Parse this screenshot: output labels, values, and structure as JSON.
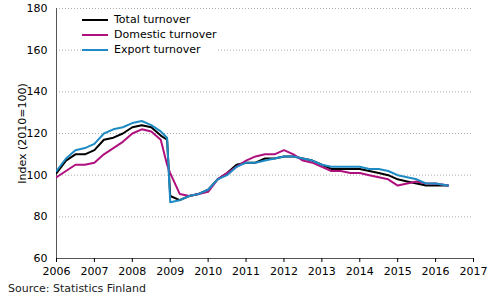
{
  "chart_data": {
    "type": "line",
    "y_label": "Index (2010=100)",
    "caption": "Source: Statistics Finland",
    "x": [
      2006.0,
      2006.25,
      2006.5,
      2006.75,
      2007.0,
      2007.25,
      2007.5,
      2007.75,
      2008.0,
      2008.25,
      2008.5,
      2008.75,
      2008.917,
      2009.0,
      2009.25,
      2009.5,
      2009.75,
      2010.0,
      2010.25,
      2010.5,
      2010.75,
      2011.0,
      2011.25,
      2011.5,
      2011.75,
      2012.0,
      2012.25,
      2012.5,
      2012.75,
      2013.0,
      2013.25,
      2013.5,
      2013.75,
      2014.0,
      2014.25,
      2014.5,
      2014.75,
      2015.0,
      2015.25,
      2015.5,
      2015.75,
      2016.0,
      2016.33
    ],
    "series": [
      {
        "name": "Total turnover",
        "color": "#000000",
        "values": [
          101,
          107,
          110,
          110,
          112,
          117,
          118,
          120,
          123,
          124,
          123,
          119,
          117,
          90,
          88,
          90,
          91,
          93,
          98,
          101,
          105,
          106,
          106,
          108,
          108,
          109,
          109,
          108,
          107,
          105,
          103,
          103,
          103,
          103,
          102,
          101,
          100,
          98,
          97,
          96,
          95,
          95,
          95
        ]
      },
      {
        "name": "Domestic turnover",
        "color": "#b0107e",
        "values": [
          99,
          102,
          105,
          105,
          106,
          110,
          113,
          116,
          120,
          122,
          121,
          117,
          105,
          101,
          91,
          90,
          91,
          92,
          98,
          101,
          104,
          107,
          109,
          110,
          110,
          112,
          110,
          107,
          106,
          104,
          102,
          102,
          101,
          101,
          100,
          99,
          98,
          95,
          96,
          97,
          96,
          96,
          95
        ]
      },
      {
        "name": "Export turnover",
        "color": "#1f8bc4",
        "values": [
          102,
          108,
          112,
          113,
          115,
          120,
          122,
          123,
          125,
          126,
          124,
          121,
          118,
          87,
          88,
          90,
          91,
          93,
          98,
          100,
          104,
          106,
          106,
          107,
          108,
          109,
          109,
          108,
          107,
          105,
          104,
          104,
          104,
          104,
          103,
          103,
          102,
          100,
          99,
          98,
          96,
          96,
          95
        ]
      }
    ],
    "xlim": [
      2006,
      2017
    ],
    "xticks": [
      2006,
      2007,
      2008,
      2009,
      2010,
      2011,
      2012,
      2013,
      2014,
      2015,
      2016,
      2017
    ],
    "ylim": [
      60,
      180
    ],
    "yticks": [
      60,
      80,
      100,
      120,
      140,
      160,
      180
    ],
    "grid": true,
    "legend": "top-left"
  }
}
